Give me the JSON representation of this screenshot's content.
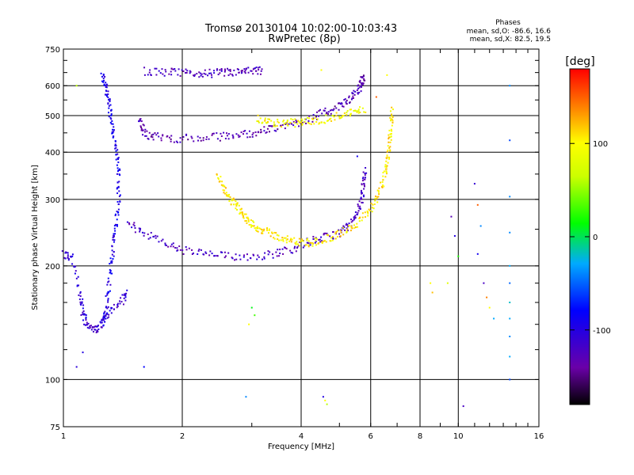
{
  "chart_data": {
    "type": "scatter",
    "title": "Tromsø 20130104 10:02:00-10:03:43",
    "subtitle": "RwPretec (8p)",
    "xlabel": "Frequency [MHz]",
    "ylabel": "Stationary phase Virtual Height [km]",
    "x_scale": "log",
    "y_scale": "log",
    "xlim": [
      1,
      16
    ],
    "ylim": [
      75,
      750
    ],
    "grid": true,
    "x_ticks": [
      1,
      2,
      4,
      6,
      8,
      10,
      16
    ],
    "x_tick_labels": [
      "1",
      "2",
      "4",
      "6",
      "8",
      "10",
      "16"
    ],
    "y_ticks": [
      75,
      100,
      200,
      300,
      400,
      500,
      600,
      750
    ],
    "y_tick_labels": [
      "75",
      "100",
      "200",
      "300",
      "400",
      "500",
      "600",
      "750"
    ],
    "stats": {
      "heading": "Phases",
      "lines": [
        "mean, sd,O: -86.6, 16.6",
        "mean, sd,X:  82.5, 19.5"
      ]
    },
    "colorbar": {
      "label": "[deg]",
      "range": [
        -180,
        180
      ],
      "ticks": [
        100,
        0,
        -100
      ],
      "tick_labels": [
        "100",
        "0",
        "-100"
      ]
    },
    "traces": [
      {
        "name": "",
        "phase": -95,
        "points": [
          [
            1.25,
            640
          ],
          [
            1.28,
            600
          ],
          [
            1.3,
            550
          ],
          [
            1.32,
            500
          ],
          [
            1.34,
            450
          ],
          [
            1.36,
            400
          ],
          [
            1.38,
            350
          ],
          [
            1.38,
            300
          ],
          [
            1.36,
            260
          ],
          [
            1.34,
            230
          ],
          [
            1.32,
            200
          ],
          [
            1.3,
            170
          ],
          [
            1.28,
            150
          ],
          [
            1.25,
            140
          ]
        ]
      },
      {
        "name": "",
        "phase": -110,
        "points": [
          [
            1.0,
            215
          ],
          [
            1.05,
            210
          ],
          [
            1.1,
            170
          ],
          [
            1.12,
            150
          ],
          [
            1.15,
            140
          ],
          [
            1.2,
            135
          ],
          [
            1.25,
            140
          ],
          [
            1.3,
            150
          ],
          [
            1.4,
            160
          ],
          [
            1.45,
            170
          ]
        ]
      },
      {
        "name": "",
        "phase": -120,
        "points": [
          [
            1.45,
            260
          ],
          [
            1.6,
            245
          ],
          [
            1.8,
            230
          ],
          [
            2.0,
            220
          ],
          [
            2.3,
            215
          ],
          [
            2.6,
            212
          ],
          [
            3.0,
            212
          ],
          [
            3.4,
            215
          ],
          [
            3.8,
            222
          ],
          [
            4.2,
            232
          ],
          [
            4.6,
            238
          ],
          [
            5.0,
            245
          ],
          [
            5.3,
            255
          ],
          [
            5.55,
            275
          ],
          [
            5.7,
            300
          ],
          [
            5.75,
            330
          ],
          [
            5.8,
            360
          ]
        ]
      },
      {
        "name": "",
        "phase": -130,
        "points": [
          [
            1.55,
            490
          ],
          [
            1.6,
            450
          ],
          [
            1.7,
            440
          ],
          [
            1.9,
            435
          ],
          [
            2.2,
            435
          ],
          [
            2.5,
            440
          ],
          [
            2.8,
            445
          ],
          [
            3.1,
            452
          ],
          [
            3.4,
            462
          ],
          [
            3.8,
            475
          ],
          [
            4.2,
            490
          ],
          [
            4.6,
            510
          ],
          [
            5.0,
            530
          ],
          [
            5.3,
            550
          ],
          [
            5.55,
            580
          ],
          [
            5.7,
            610
          ],
          [
            5.75,
            640
          ]
        ]
      },
      {
        "name": "",
        "phase": -125,
        "points": [
          [
            1.6,
            655
          ],
          [
            1.8,
            652
          ],
          [
            2.0,
            648
          ],
          [
            2.2,
            645
          ],
          [
            2.4,
            648
          ],
          [
            2.6,
            650
          ],
          [
            2.8,
            652
          ],
          [
            3.0,
            655
          ],
          [
            3.2,
            658
          ]
        ]
      },
      {
        "name": "",
        "phase": 105,
        "points": [
          [
            2.45,
            345
          ],
          [
            2.55,
            320
          ],
          [
            2.65,
            300
          ],
          [
            2.75,
            285
          ],
          [
            2.85,
            272
          ],
          [
            2.95,
            262
          ],
          [
            3.1,
            252
          ],
          [
            3.3,
            245
          ],
          [
            3.55,
            238
          ],
          [
            3.8,
            232
          ],
          [
            4.1,
            230
          ],
          [
            4.4,
            232
          ],
          [
            4.8,
            238
          ],
          [
            5.2,
            248
          ],
          [
            5.6,
            262
          ],
          [
            6.0,
            280
          ],
          [
            6.3,
            310
          ],
          [
            6.5,
            345
          ],
          [
            6.6,
            380
          ],
          [
            6.7,
            420
          ],
          [
            6.75,
            470
          ],
          [
            6.78,
            520
          ]
        ]
      },
      {
        "name": "",
        "phase": 95,
        "points": [
          [
            3.1,
            490
          ],
          [
            3.3,
            480
          ],
          [
            3.6,
            478
          ],
          [
            3.9,
            478
          ],
          [
            4.2,
            482
          ],
          [
            4.6,
            490
          ],
          [
            5.0,
            500
          ],
          [
            5.4,
            510
          ],
          [
            5.8,
            520
          ]
        ]
      }
    ],
    "scatter_points": [
      [
        1.08,
        108,
        -105
      ],
      [
        1.12,
        118,
        -100
      ],
      [
        1.6,
        108,
        -80
      ],
      [
        4.5,
        660,
        100
      ],
      [
        4.55,
        90,
        -100
      ],
      [
        4.6,
        88,
        100
      ],
      [
        4.65,
        86,
        60
      ],
      [
        2.9,
        90,
        -40
      ],
      [
        2.95,
        140,
        100
      ],
      [
        3.0,
        155,
        10
      ],
      [
        3.05,
        148,
        30
      ],
      [
        5.55,
        390,
        -90
      ],
      [
        9.4,
        180,
        80
      ],
      [
        9.6,
        270,
        -130
      ],
      [
        9.8,
        240,
        -100
      ],
      [
        10.0,
        212,
        20
      ],
      [
        11.0,
        330,
        -110
      ],
      [
        11.2,
        290,
        150
      ],
      [
        11.4,
        255,
        -40
      ],
      [
        11.2,
        215,
        -90
      ],
      [
        11.6,
        180,
        -120
      ],
      [
        11.8,
        165,
        140
      ],
      [
        12.0,
        155,
        100
      ],
      [
        12.3,
        145,
        -30
      ],
      [
        13.5,
        600,
        -40
      ],
      [
        13.5,
        430,
        -60
      ],
      [
        13.5,
        305,
        -40
      ],
      [
        13.5,
        245,
        -40
      ],
      [
        13.5,
        200,
        -30
      ],
      [
        13.5,
        180,
        -50
      ],
      [
        13.5,
        160,
        -20
      ],
      [
        13.5,
        145,
        -30
      ],
      [
        13.5,
        130,
        -40
      ],
      [
        13.5,
        115,
        -30
      ],
      [
        13.5,
        100,
        -60
      ],
      [
        8.5,
        180,
        100
      ],
      [
        8.6,
        170,
        120
      ],
      [
        10.3,
        85,
        -120
      ],
      [
        1.08,
        600,
        60
      ],
      [
        6.6,
        640,
        100
      ],
      [
        6.2,
        560,
        150
      ]
    ]
  }
}
